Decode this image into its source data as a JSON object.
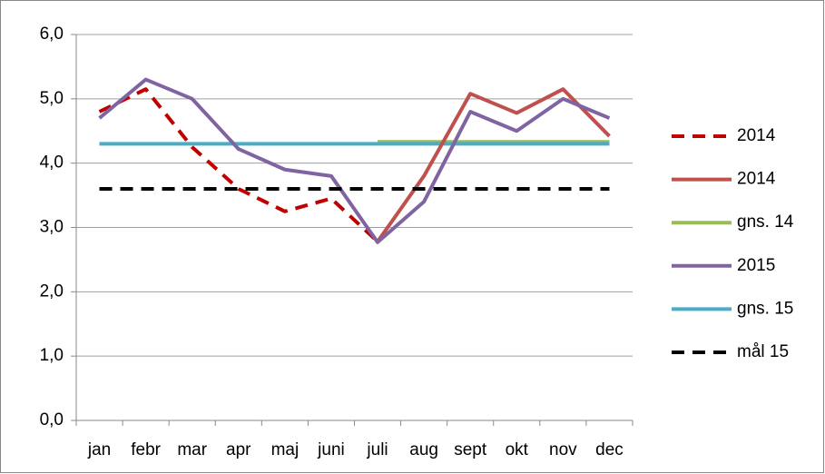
{
  "chart_data": {
    "type": "line",
    "categories": [
      "jan",
      "febr",
      "mar",
      "apr",
      "maj",
      "juni",
      "juli",
      "aug",
      "sept",
      "okt",
      "nov",
      "dec"
    ],
    "series": [
      {
        "name": "2014",
        "color": "#c00000",
        "dashed": true,
        "values": [
          4.8,
          5.15,
          4.25,
          3.6,
          3.25,
          3.45,
          2.78,
          null,
          null,
          null,
          null,
          null
        ]
      },
      {
        "name": "2014",
        "color": "#c0504d",
        "dashed": false,
        "values": [
          null,
          null,
          null,
          null,
          null,
          null,
          2.78,
          3.8,
          5.08,
          4.78,
          5.15,
          4.42
        ]
      },
      {
        "name": "gns. 14",
        "color": "#9bbb59",
        "dashed": false,
        "values": [
          null,
          null,
          null,
          null,
          null,
          null,
          4.33,
          4.33,
          4.33,
          4.33,
          4.33,
          4.33
        ]
      },
      {
        "name": "2015",
        "color": "#8064a2",
        "dashed": false,
        "values": [
          4.7,
          5.3,
          5.0,
          4.22,
          3.9,
          3.8,
          2.77,
          3.4,
          4.8,
          4.5,
          5.0,
          4.7
        ]
      },
      {
        "name": "gns. 15",
        "color": "#4bacc6",
        "dashed": false,
        "values": [
          4.3,
          4.3,
          4.3,
          4.3,
          4.3,
          4.3,
          4.3,
          4.3,
          4.3,
          4.3,
          4.3,
          4.3
        ]
      },
      {
        "name": "mål 15",
        "color": "#000000",
        "dashed": true,
        "values": [
          3.6,
          3.6,
          3.6,
          3.6,
          3.6,
          3.6,
          3.6,
          3.6,
          3.6,
          3.6,
          3.6,
          3.6
        ]
      }
    ],
    "ylim": [
      0,
      6
    ],
    "yticks": [
      {
        "value": 0,
        "label": "0,0"
      },
      {
        "value": 1,
        "label": "1,0"
      },
      {
        "value": 2,
        "label": "2,0"
      },
      {
        "value": 3,
        "label": "3,0"
      },
      {
        "value": 4,
        "label": "4,0"
      },
      {
        "value": 5,
        "label": "5,0"
      },
      {
        "value": 6,
        "label": "6,0"
      }
    ],
    "grid": true,
    "legend": "right"
  }
}
